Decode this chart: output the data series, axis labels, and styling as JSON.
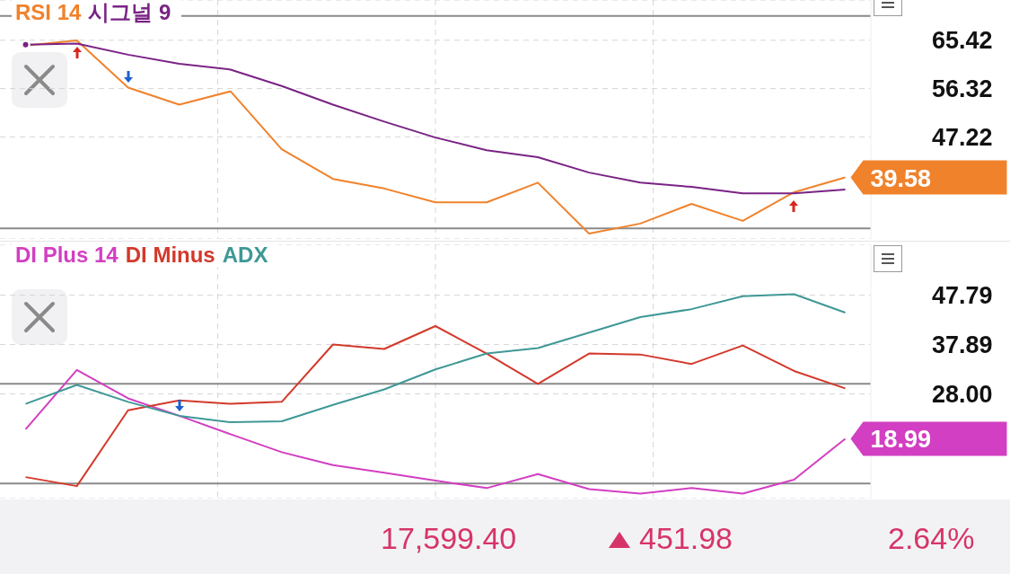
{
  "chart_data": [
    {
      "type": "line",
      "categories": [
        null,
        null,
        null,
        null,
        null,
        null,
        null,
        null,
        null,
        null,
        null,
        null,
        null,
        null,
        null,
        null,
        null
      ],
      "legend": "top left",
      "grid": true,
      "tick_labels": "y",
      "ylim": [
        28,
        73
      ],
      "yticks": [
        65.42,
        56.32,
        47.22
      ],
      "series": [
        {
          "name": "RSI 14",
          "color": "#f0822c",
          "values": [
            64.4,
            65.4,
            56.5,
            53.3,
            55.8,
            44.9,
            39.3,
            37.5,
            34.9,
            34.9,
            38.6,
            29.0,
            30.9,
            34.6,
            31.4,
            36.8,
            39.58
          ],
          "value_labels": [
            null,
            null,
            null,
            null,
            null,
            null,
            null,
            null,
            null,
            null,
            null,
            null,
            null,
            null,
            null,
            null,
            "39.58"
          ]
        },
        {
          "name": "시그널 9",
          "color": "#7a2385",
          "values": [
            64.6,
            64.8,
            62.7,
            61.0,
            59.9,
            56.8,
            53.3,
            50.1,
            47.1,
            44.7,
            43.4,
            40.5,
            38.6,
            37.8,
            36.6,
            36.6,
            37.3
          ]
        }
      ],
      "ref_lines": [
        {
          "axis": "y",
          "value": 70,
          "color": "#8a8a8a"
        },
        {
          "axis": "y",
          "value": 30,
          "color": "#8a8a8a"
        }
      ]
    },
    {
      "type": "line",
      "categories": [
        null,
        null,
        null,
        null,
        null,
        null,
        null,
        null,
        null,
        null,
        null,
        null,
        null,
        null,
        null,
        null,
        null
      ],
      "legend": "top left",
      "grid": true,
      "tick_labels": "y",
      "ylim": [
        7,
        58
      ],
      "yticks": [
        47.79,
        37.89,
        {
          "value": 28,
          "label": "28.00"
        }
      ],
      "series": [
        {
          "name": "DI Plus 14",
          "color": "#d23fc2",
          "values": [
            20.9,
            32.8,
            27.1,
            23.6,
            19.9,
            16.3,
            13.7,
            12.2,
            10.6,
            9.1,
            11.9,
            8.9,
            8.0,
            9.1,
            8.0,
            10.8,
            18.99
          ],
          "value_labels": [
            null,
            null,
            null,
            null,
            null,
            null,
            null,
            null,
            null,
            null,
            null,
            null,
            null,
            null,
            null,
            null,
            "18.99"
          ]
        },
        {
          "name": "DI Minus",
          "color": "#d3392b",
          "values": [
            11.3,
            9.5,
            24.7,
            26.7,
            26.0,
            26.4,
            37.9,
            37.0,
            41.6,
            36.1,
            30.0,
            36.1,
            35.9,
            34.0,
            37.7,
            32.6,
            29.1
          ]
        },
        {
          "name": "ADX",
          "color": "#3e9896",
          "values": [
            26.0,
            29.8,
            26.4,
            23.6,
            22.3,
            22.5,
            25.8,
            28.9,
            32.9,
            36.1,
            37.2,
            40.3,
            43.4,
            45.0,
            47.6,
            48.0,
            44.3
          ]
        }
      ],
      "ref_lines": [
        {
          "axis": "y",
          "value": 30,
          "color": "#8a8a8a"
        },
        {
          "axis": "y",
          "value": 10,
          "color": "#8a8a8a"
        }
      ],
      "annotations": [
        "17,599.40",
        "451.98",
        "2.64%"
      ]
    }
  ]
}
